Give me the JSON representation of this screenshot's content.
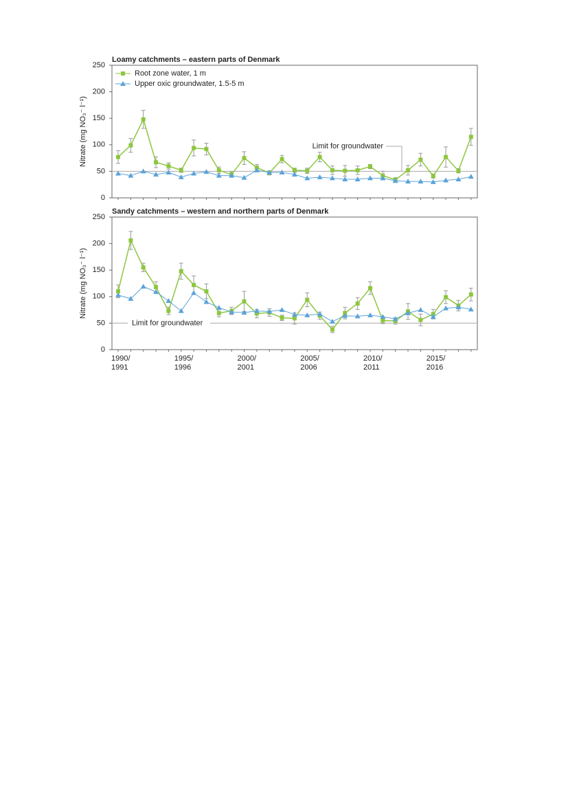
{
  "chart_data": [
    {
      "type": "line",
      "title": "Loamy catchments – eastern parts of Denmark",
      "ylabel": "Nitrate (mg NO₃⁻ l⁻¹)",
      "categories": [
        null,
        null,
        null,
        null,
        null,
        null,
        null,
        null,
        null,
        null,
        null,
        null,
        null,
        null,
        null,
        null,
        null,
        null,
        null,
        null,
        null,
        null,
        null,
        null,
        null,
        null,
        null,
        null,
        null
      ],
      "ylim": [
        0,
        250
      ],
      "yticks": [
        0,
        50,
        100,
        150,
        200,
        250
      ],
      "legend": "upper left",
      "limit": 50,
      "limit_label": "Limit for groundwater",
      "series": [
        {
          "name": "Root zone water, 1 m",
          "color": "#8dc63f",
          "marker": "square",
          "values": [
            77,
            99,
            148,
            67,
            60,
            52,
            94,
            92,
            52,
            44,
            75,
            57,
            47,
            73,
            52,
            51,
            77,
            52,
            51,
            52,
            59,
            42,
            34,
            52,
            72,
            41,
            77,
            51,
            115
          ],
          "errors": [
            12,
            13,
            17,
            10,
            6,
            4,
            15,
            11,
            6,
            5,
            12,
            6,
            4,
            7,
            4,
            5,
            9,
            8,
            10,
            8,
            4,
            8,
            4,
            9,
            12,
            4,
            19,
            4,
            16
          ]
        },
        {
          "name": "Upper oxic groundwater, 1.5-5 m",
          "color": "#5ba3d9",
          "marker": "triangle",
          "values": [
            46,
            42,
            50,
            44,
            48,
            39,
            46,
            49,
            42,
            42,
            38,
            52,
            48,
            48,
            44,
            37,
            39,
            37,
            35,
            35,
            37,
            37,
            32,
            31,
            31,
            30,
            33,
            35,
            40
          ]
        }
      ]
    },
    {
      "type": "line",
      "title": "Sandy catchments – western and northern parts of Denmark",
      "ylabel": "Nitrate (mg NO₃⁻ l⁻¹)",
      "categories": [
        "1990/\n1991",
        null,
        null,
        null,
        null,
        "1995/\n1996",
        null,
        null,
        null,
        null,
        "2000/\n2001",
        null,
        null,
        null,
        null,
        "2005/\n2006",
        null,
        null,
        null,
        null,
        "2010/\n2011",
        null,
        null,
        null,
        null,
        "2015/\n2016",
        null,
        null,
        null
      ],
      "ylim": [
        0,
        250
      ],
      "yticks": [
        0,
        50,
        100,
        150,
        200,
        250
      ],
      "limit": 50,
      "limit_label": "Limit for groundwater",
      "series": [
        {
          "color": "#8dc63f",
          "marker": "square",
          "values": [
            110,
            206,
            155,
            118,
            73,
            148,
            122,
            110,
            69,
            73,
            91,
            68,
            70,
            60,
            59,
            94,
            64,
            38,
            69,
            87,
            116,
            55,
            54,
            72,
            56,
            67,
            99,
            83,
            104
          ],
          "errors": [
            12,
            17,
            8,
            10,
            7,
            15,
            17,
            14,
            7,
            7,
            19,
            8,
            7,
            5,
            11,
            13,
            7,
            6,
            11,
            11,
            12,
            6,
            6,
            15,
            11,
            9,
            12,
            10,
            12
          ]
        },
        {
          "color": "#5ba3d9",
          "marker": "triangle",
          "values": [
            103,
            96,
            119,
            109,
            92,
            73,
            107,
            90,
            79,
            71,
            70,
            73,
            72,
            75,
            66,
            65,
            67,
            53,
            64,
            63,
            65,
            62,
            58,
            69,
            75,
            62,
            78,
            80,
            76
          ]
        }
      ]
    }
  ]
}
